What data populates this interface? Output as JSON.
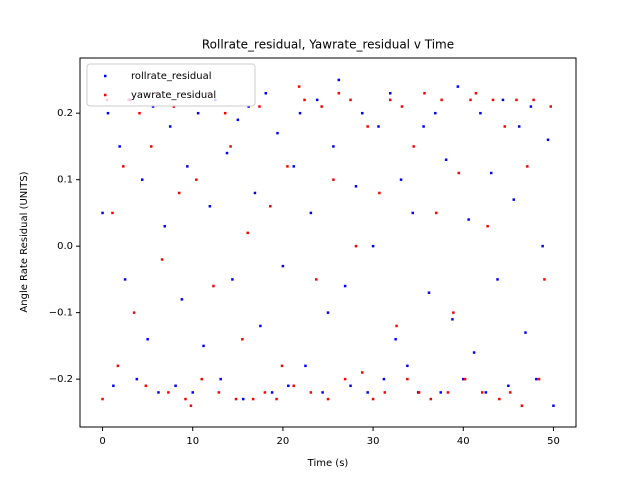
{
  "chart_data": {
    "type": "scatter",
    "title": "Rollrate_residual, Yawrate_residual v Time",
    "x_label": "Time (s)",
    "y_label": "Angle Rate Residual (UNITS)",
    "xlim": [
      -2.5,
      52.5
    ],
    "ylim": [
      -0.272,
      0.283
    ],
    "xticks": [
      0,
      10,
      20,
      30,
      40,
      50
    ],
    "yticks": [
      {
        "value": -0.2,
        "label": "−0.2"
      },
      {
        "value": -0.1,
        "label": "−0.1"
      },
      {
        "value": 0,
        "label": "0.0"
      },
      0.1,
      0.2
    ],
    "legend": "upper left",
    "series": [
      {
        "name": "rollrate_residual",
        "color": "#0000ff",
        "x": [
          0,
          0.6,
          1.2,
          1.9,
          2.5,
          3.1,
          3.8,
          4.4,
          5.0,
          5.6,
          6.2,
          6.9,
          7.5,
          8.1,
          8.8,
          9.4,
          10.0,
          10.6,
          11.2,
          11.9,
          12.5,
          13.1,
          13.8,
          14.4,
          15.0,
          15.6,
          16.2,
          16.9,
          17.5,
          18.1,
          18.8,
          19.4,
          20.0,
          20.6,
          21.2,
          21.9,
          22.5,
          23.1,
          23.8,
          24.4,
          25.0,
          25.6,
          26.2,
          26.9,
          27.5,
          28.1,
          28.8,
          29.4,
          30.0,
          30.6,
          31.2,
          31.9,
          32.5,
          33.1,
          33.8,
          34.4,
          35.0,
          35.6,
          36.2,
          36.9,
          37.5,
          38.1,
          38.8,
          39.4,
          40.0,
          40.6,
          41.2,
          41.9,
          42.5,
          43.1,
          43.8,
          44.4,
          45.0,
          45.6,
          46.2,
          46.9,
          47.5,
          48.1,
          48.8,
          49.4,
          50.0
        ],
        "values": [
          0.05,
          0.2,
          -0.21,
          0.15,
          -0.05,
          0.22,
          -0.2,
          0.1,
          -0.14,
          0.21,
          -0.22,
          0.03,
          0.18,
          -0.21,
          -0.08,
          0.12,
          -0.22,
          0.2,
          -0.15,
          0.06,
          0.22,
          -0.2,
          0.14,
          -0.05,
          0.19,
          -0.23,
          0.21,
          0.08,
          -0.12,
          0.23,
          -0.22,
          0.17,
          -0.03,
          -0.21,
          0.12,
          0.2,
          -0.18,
          0.05,
          0.22,
          -0.22,
          -0.1,
          0.15,
          0.25,
          -0.06,
          -0.21,
          0.09,
          0.2,
          -0.22,
          0.0,
          0.18,
          -0.2,
          0.23,
          -0.14,
          0.1,
          -0.18,
          0.05,
          -0.22,
          0.18,
          -0.07,
          0.2,
          -0.22,
          0.13,
          -0.11,
          0.24,
          -0.2,
          0.04,
          -0.16,
          0.2,
          -0.22,
          0.11,
          -0.05,
          0.22,
          -0.21,
          0.07,
          0.18,
          -0.13,
          0.21,
          -0.2,
          0.0,
          0.16,
          -0.24
        ]
      },
      {
        "name": "yawrate_residual",
        "color": "#ff0000",
        "x": [
          0,
          0.5,
          1.1,
          1.7,
          2.3,
          2.9,
          3.5,
          4.1,
          4.8,
          5.4,
          6.0,
          6.6,
          7.3,
          7.9,
          8.5,
          9.2,
          9.8,
          10.4,
          11.0,
          11.7,
          12.3,
          12.9,
          13.6,
          14.2,
          14.8,
          15.5,
          16.1,
          16.7,
          17.4,
          18.0,
          18.6,
          19.3,
          19.9,
          20.5,
          21.2,
          21.8,
          22.4,
          23.1,
          23.7,
          24.3,
          25.0,
          25.6,
          26.2,
          26.9,
          27.5,
          28.1,
          28.8,
          29.4,
          30.0,
          30.7,
          31.3,
          31.9,
          32.6,
          33.2,
          33.8,
          34.5,
          35.1,
          35.7,
          36.4,
          37.0,
          37.6,
          38.3,
          38.9,
          39.5,
          40.2,
          40.8,
          41.4,
          42.1,
          42.7,
          43.3,
          44.0,
          44.6,
          45.2,
          45.9,
          46.5,
          47.1,
          47.8,
          48.4,
          49.0,
          49.7
        ],
        "values": [
          -0.23,
          0.22,
          0.05,
          -0.18,
          0.12,
          0.22,
          -0.1,
          0.2,
          -0.21,
          0.15,
          0.23,
          -0.02,
          -0.22,
          0.21,
          0.08,
          -0.23,
          -0.24,
          0.1,
          -0.2,
          0.23,
          -0.06,
          -0.22,
          0.2,
          0.15,
          -0.23,
          -0.14,
          0.02,
          -0.23,
          0.21,
          -0.22,
          0.06,
          -0.23,
          -0.18,
          0.12,
          -0.21,
          0.24,
          0.22,
          -0.22,
          -0.05,
          0.21,
          -0.23,
          0.1,
          0.23,
          -0.2,
          0.22,
          0.0,
          -0.19,
          0.18,
          -0.23,
          0.08,
          -0.22,
          0.22,
          -0.12,
          0.21,
          -0.2,
          0.15,
          -0.22,
          0.23,
          -0.23,
          0.05,
          0.22,
          -0.22,
          -0.1,
          0.11,
          -0.2,
          0.22,
          0.23,
          -0.22,
          0.03,
          0.22,
          -0.23,
          0.18,
          -0.22,
          0.22,
          -0.24,
          0.12,
          0.22,
          -0.2,
          -0.05,
          0.21
        ]
      }
    ]
  }
}
